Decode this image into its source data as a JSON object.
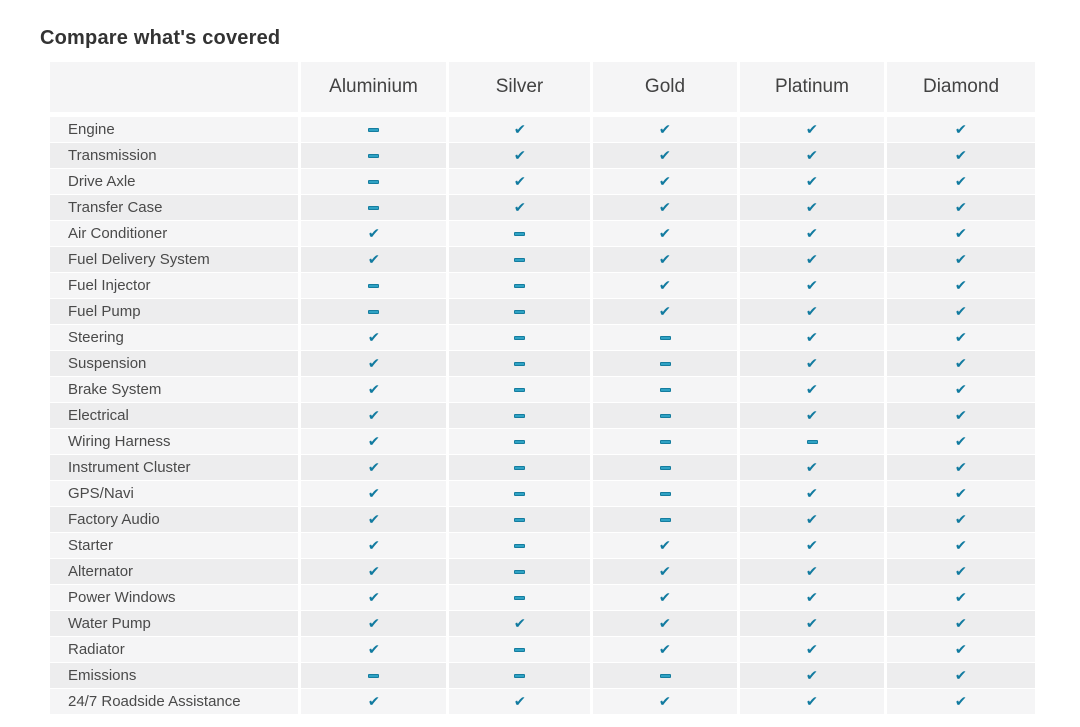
{
  "title": "Compare what's covered",
  "colors": {
    "check_color": "#127ba0",
    "dash_fill": "#2fa2c4",
    "dash_border": "#157d9f",
    "row_light": "#f5f5f6",
    "row_dark": "#ededee",
    "header_bg": "#f5f5f6",
    "title_text": "#333333",
    "header_text": "#424242",
    "label_text": "#4a4a4a"
  },
  "icons": {
    "check_glyph": "✔",
    "check_name": "check-icon",
    "dash_name": "dash-icon"
  },
  "table": {
    "columns": [
      "Aluminium",
      "Silver",
      "Gold",
      "Platinum",
      "Diamond"
    ],
    "rows": [
      {
        "label": "Engine",
        "values": [
          0,
          1,
          1,
          1,
          1
        ]
      },
      {
        "label": "Transmission",
        "values": [
          0,
          1,
          1,
          1,
          1
        ]
      },
      {
        "label": "Drive Axle",
        "values": [
          0,
          1,
          1,
          1,
          1
        ]
      },
      {
        "label": "Transfer Case",
        "values": [
          0,
          1,
          1,
          1,
          1
        ]
      },
      {
        "label": "Air Conditioner",
        "values": [
          1,
          0,
          1,
          1,
          1
        ]
      },
      {
        "label": "Fuel Delivery System",
        "values": [
          1,
          0,
          1,
          1,
          1
        ]
      },
      {
        "label": "Fuel Injector",
        "values": [
          0,
          0,
          1,
          1,
          1
        ]
      },
      {
        "label": "Fuel Pump",
        "values": [
          0,
          0,
          1,
          1,
          1
        ]
      },
      {
        "label": "Steering",
        "values": [
          1,
          0,
          0,
          1,
          1
        ]
      },
      {
        "label": "Suspension",
        "values": [
          1,
          0,
          0,
          1,
          1
        ]
      },
      {
        "label": "Brake System",
        "values": [
          1,
          0,
          0,
          1,
          1
        ]
      },
      {
        "label": "Electrical",
        "values": [
          1,
          0,
          0,
          1,
          1
        ]
      },
      {
        "label": "Wiring Harness",
        "values": [
          1,
          0,
          0,
          0,
          1
        ]
      },
      {
        "label": "Instrument Cluster",
        "values": [
          1,
          0,
          0,
          1,
          1
        ]
      },
      {
        "label": "GPS/Navi",
        "values": [
          1,
          0,
          0,
          1,
          1
        ]
      },
      {
        "label": "Factory Audio",
        "values": [
          1,
          0,
          0,
          1,
          1
        ]
      },
      {
        "label": "Starter",
        "values": [
          1,
          0,
          1,
          1,
          1
        ]
      },
      {
        "label": "Alternator",
        "values": [
          1,
          0,
          1,
          1,
          1
        ]
      },
      {
        "label": "Power Windows",
        "values": [
          1,
          0,
          1,
          1,
          1
        ]
      },
      {
        "label": "Water Pump",
        "values": [
          1,
          1,
          1,
          1,
          1
        ]
      },
      {
        "label": "Radiator",
        "values": [
          1,
          0,
          1,
          1,
          1
        ]
      },
      {
        "label": "Emissions",
        "values": [
          0,
          0,
          0,
          1,
          1
        ]
      },
      {
        "label": "24/7 Roadside Assistance",
        "values": [
          1,
          1,
          1,
          1,
          1
        ]
      }
    ]
  }
}
